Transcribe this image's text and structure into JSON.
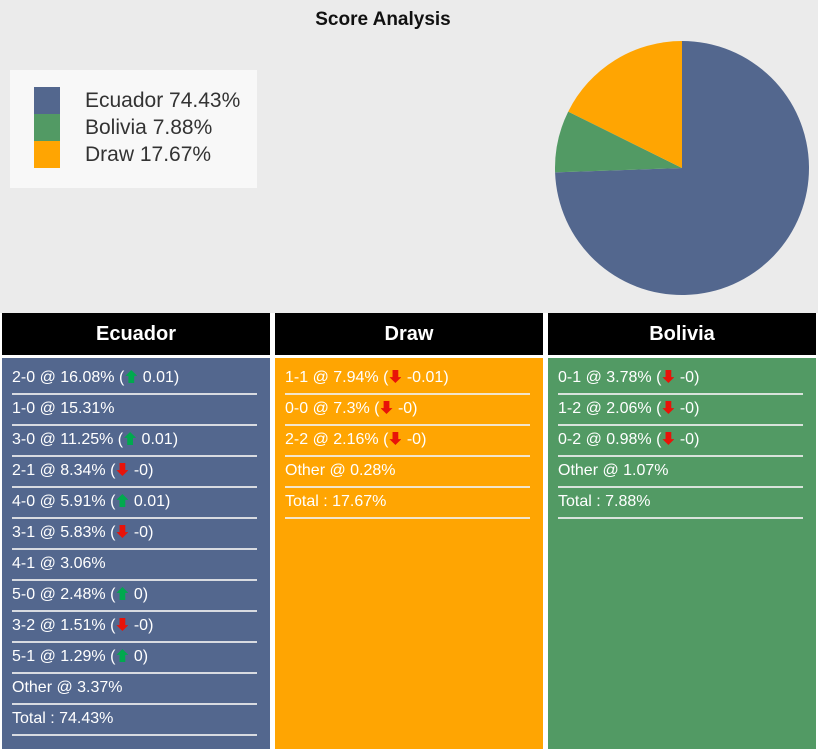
{
  "title": "Score Analysis",
  "colors": {
    "background": "#ebebeb",
    "legend_background": "#f8f8f8",
    "table_gap": "#ffffff",
    "header_background": "#000000",
    "header_text": "#ffffff",
    "row_text": "#ffffff",
    "row_separator": "#f0f0f0",
    "ecuador": "#53678e",
    "bolivia": "#529a64",
    "draw": "#ffa502",
    "trend_up": "#00a94e",
    "trend_down": "#e81309"
  },
  "legend": {
    "items": [
      {
        "label": "Ecuador 74.43%",
        "color": "#53678e"
      },
      {
        "label": "Bolivia 7.88%",
        "color": "#529a64"
      },
      {
        "label": "Draw 17.67%",
        "color": "#ffa502"
      }
    ]
  },
  "chart_data": {
    "type": "pie",
    "title": "Score Analysis",
    "labels": [
      "Ecuador",
      "Bolivia",
      "Draw"
    ],
    "values": [
      74.43,
      7.88,
      17.67
    ],
    "colors": [
      "#53678e",
      "#529a64",
      "#ffa502"
    ],
    "start_angle_deg": 0,
    "direction": "clockwise",
    "legend_position": "upper-left"
  },
  "columns": [
    {
      "header": "Ecuador",
      "color": "#53678e",
      "rows": [
        {
          "pre": "2-0 @ 16.08% (",
          "arrow": "up",
          "post": " 0.01)"
        },
        {
          "pre": "1-0 @ 15.31%"
        },
        {
          "pre": "3-0 @ 11.25% (",
          "arrow": "up",
          "post": " 0.01)"
        },
        {
          "pre": "2-1 @ 8.34% (",
          "arrow": "down",
          "post": " -0)"
        },
        {
          "pre": "4-0 @ 5.91% (",
          "arrow": "up",
          "post": " 0.01)"
        },
        {
          "pre": "3-1 @ 5.83% (",
          "arrow": "down",
          "post": " -0)"
        },
        {
          "pre": "4-1 @ 3.06%"
        },
        {
          "pre": "5-0 @ 2.48% (",
          "arrow": "up",
          "post": " 0)"
        },
        {
          "pre": "3-2 @ 1.51% (",
          "arrow": "down",
          "post": " -0)"
        },
        {
          "pre": "5-1 @ 1.29% (",
          "arrow": "up",
          "post": " 0)"
        },
        {
          "pre": "Other @ 3.37%"
        },
        {
          "pre": "Total : 74.43%"
        }
      ]
    },
    {
      "header": "Draw",
      "color": "#ffa502",
      "rows": [
        {
          "pre": "1-1 @ 7.94% (",
          "arrow": "down",
          "post": " -0.01)"
        },
        {
          "pre": "0-0 @ 7.3% (",
          "arrow": "down",
          "post": " -0)"
        },
        {
          "pre": "2-2 @ 2.16% (",
          "arrow": "down",
          "post": " -0)"
        },
        {
          "pre": "Other @ 0.28%"
        },
        {
          "pre": "Total : 17.67%"
        }
      ]
    },
    {
      "header": "Bolivia",
      "color": "#529a64",
      "rows": [
        {
          "pre": "0-1 @ 3.78% (",
          "arrow": "down",
          "post": " -0)"
        },
        {
          "pre": "1-2 @ 2.06% (",
          "arrow": "down",
          "post": " -0)"
        },
        {
          "pre": "0-2 @ 0.98% (",
          "arrow": "down",
          "post": " -0)"
        },
        {
          "pre": "Other @ 1.07%"
        },
        {
          "pre": "Total : 7.88%"
        }
      ]
    }
  ]
}
